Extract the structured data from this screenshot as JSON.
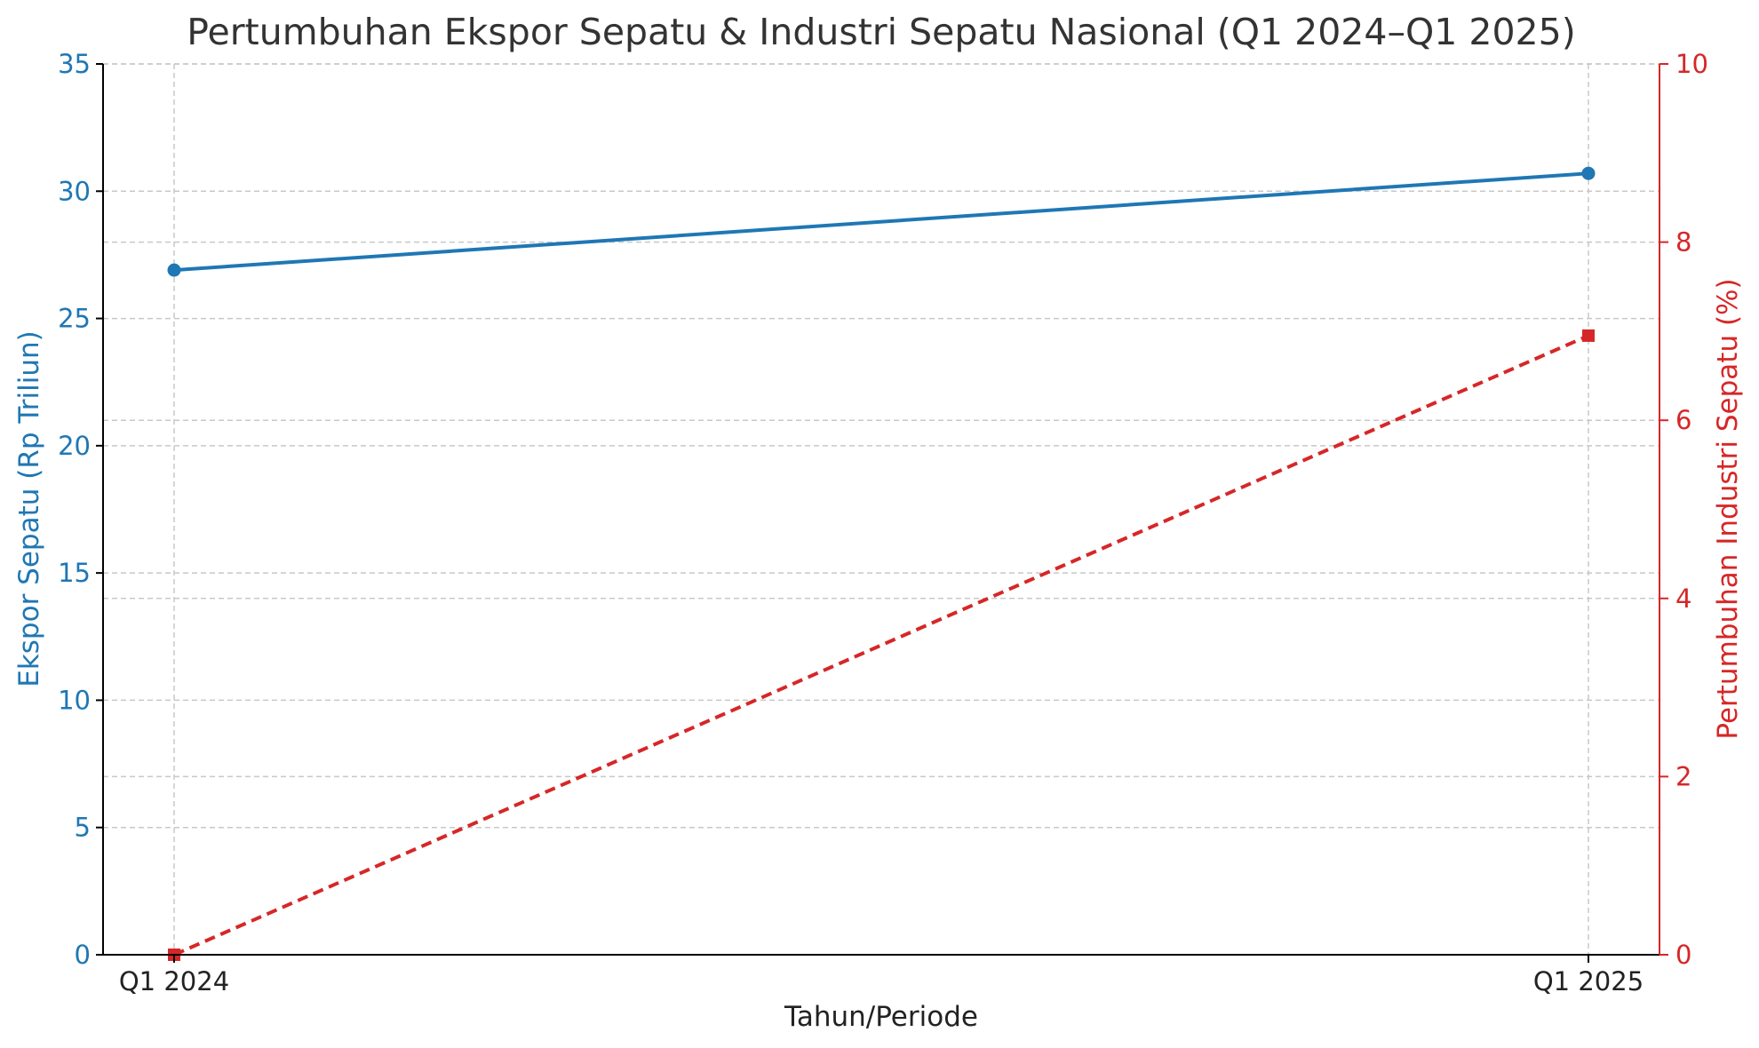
{
  "chart_data": {
    "type": "line",
    "title": "Pertumbuhan Ekspor Sepatu & Industri Sepatu Nasional (Q1 2024–Q1 2025)",
    "xlabel": "Tahun/Periode",
    "ylabel": "Ekspor Sepatu (Rp Triliun)",
    "y2label": "Pertumbuhan Industri Sepatu (%)",
    "categories": [
      "Q1 2024",
      "Q1 2025"
    ],
    "ylim": [
      0,
      35
    ],
    "y2lim": [
      0,
      10
    ],
    "yticks": [
      0,
      5,
      10,
      15,
      20,
      25,
      30,
      35
    ],
    "y2ticks": [
      0,
      2,
      4,
      6,
      8,
      10
    ],
    "grid": true,
    "series": [
      {
        "axis": "left",
        "values": [
          26.9,
          30.7
        ],
        "color": "#1f77b4",
        "style": "solid",
        "marker": "circle"
      },
      {
        "axis": "right",
        "values": [
          0.0,
          6.95
        ],
        "color": "#d62728",
        "style": "dashed",
        "marker": "square"
      }
    ]
  }
}
